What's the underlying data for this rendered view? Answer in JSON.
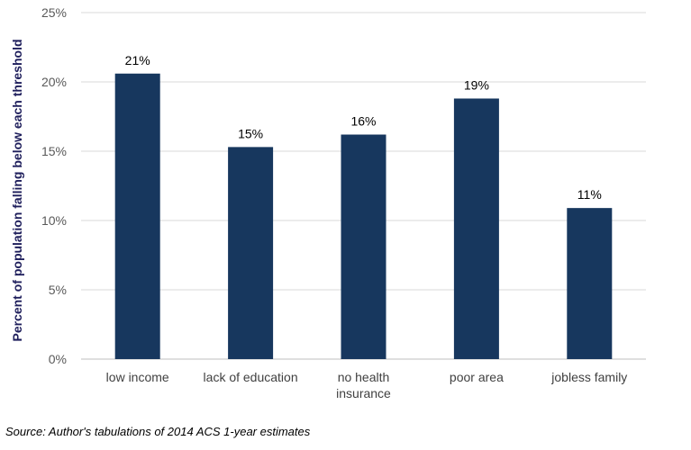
{
  "chart_data": {
    "type": "bar",
    "categories": [
      [
        "low income"
      ],
      [
        "lack of education"
      ],
      [
        "no health",
        "insurance"
      ],
      [
        "poor area"
      ],
      [
        "jobless family"
      ]
    ],
    "values": [
      20.6,
      15.3,
      16.2,
      18.8,
      10.9
    ],
    "data_labels": [
      "21%",
      "15%",
      "16%",
      "19%",
      "11%"
    ],
    "ylabel": "Percent of population falling below each threshold",
    "ylim": [
      0,
      25
    ],
    "yticks": [
      0,
      5,
      10,
      15,
      20,
      25
    ],
    "ytick_labels": [
      "0%",
      "5%",
      "10%",
      "15%",
      "20%",
      "25%"
    ],
    "grid": true,
    "legend": "none",
    "bar_color": "#17375e",
    "axis_label_color": "#1f1f5c",
    "source": "Source: Author's tabulations of 2014 ACS 1-year estimates"
  }
}
